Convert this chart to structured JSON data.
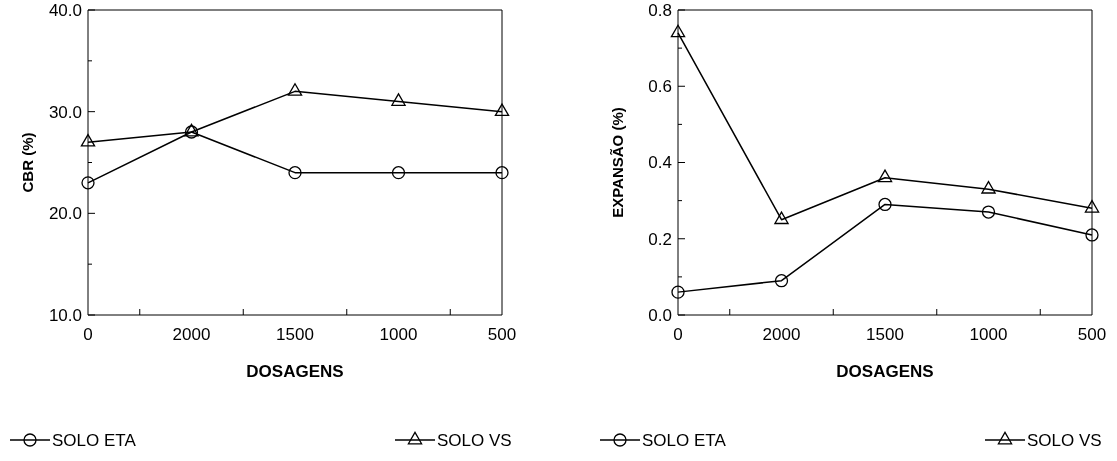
{
  "chart_data": [
    {
      "type": "line",
      "xlabel": "DOSAGENS",
      "ylabel": "CBR (%)",
      "categories": [
        "0",
        "2000",
        "1500",
        "1000",
        "500"
      ],
      "ylim": [
        10,
        40
      ],
      "yticks": [
        {
          "value": 10,
          "label": "10.0"
        },
        {
          "value": 15,
          "label": null
        },
        {
          "value": 20,
          "label": "20.0"
        },
        {
          "value": 25,
          "label": null
        },
        {
          "value": 30,
          "label": "30.0"
        },
        {
          "value": 35,
          "label": null
        },
        {
          "value": 40,
          "label": "40.0"
        }
      ],
      "grid": false,
      "legend": "bottom",
      "line_style": "solid",
      "series": [
        {
          "name": "SOLO ETA",
          "color": "#000000",
          "marker": "circle",
          "values": [
            23,
            28,
            24,
            24,
            24
          ]
        },
        {
          "name": "SOLO VS",
          "color": "#000000",
          "marker": "triangle",
          "values": [
            27,
            28,
            32,
            31,
            30
          ]
        }
      ]
    },
    {
      "type": "line",
      "xlabel": "DOSAGENS",
      "ylabel": "EXPANSÃO (%)",
      "categories": [
        "0",
        "2000",
        "1500",
        "1000",
        "500"
      ],
      "ylim": [
        0,
        0.8
      ],
      "yticks": [
        {
          "value": 0,
          "label": "0.0"
        },
        {
          "value": 0.1,
          "label": null
        },
        {
          "value": 0.2,
          "label": "0.2"
        },
        {
          "value": 0.3,
          "label": null
        },
        {
          "value": 0.4,
          "label": "0.4"
        },
        {
          "value": 0.5,
          "label": null
        },
        {
          "value": 0.6,
          "label": "0.6"
        },
        {
          "value": 0.7,
          "label": null
        },
        {
          "value": 0.8,
          "label": "0.8"
        }
      ],
      "grid": false,
      "legend": "bottom",
      "line_style": "solid",
      "series": [
        {
          "name": "SOLO ETA",
          "color": "#000000",
          "marker": "circle",
          "values": [
            0.06,
            0.09,
            0.29,
            0.27,
            0.21
          ]
        },
        {
          "name": "SOLO VS",
          "color": "#000000",
          "marker": "triangle",
          "values": [
            0.74,
            0.25,
            0.36,
            0.33,
            0.28
          ]
        }
      ]
    }
  ]
}
